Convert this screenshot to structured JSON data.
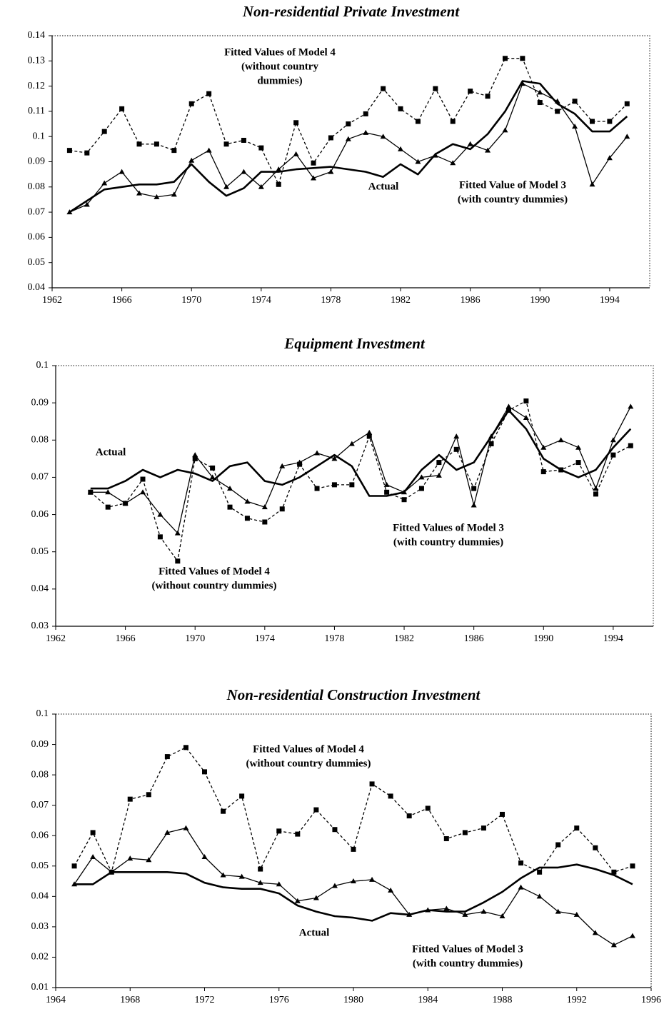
{
  "chart_data": [
    {
      "type": "line",
      "title": "Non-residential Private Investment",
      "x": [
        1963,
        1964,
        1965,
        1966,
        1967,
        1968,
        1969,
        1970,
        1971,
        1972,
        1973,
        1974,
        1975,
        1976,
        1977,
        1978,
        1979,
        1980,
        1981,
        1982,
        1983,
        1984,
        1985,
        1986,
        1987,
        1988,
        1989,
        1990,
        1991,
        1992,
        1993,
        1994,
        1995
      ],
      "xlim": [
        1962,
        1996.3
      ],
      "xticks": [
        1962,
        1966,
        1970,
        1974,
        1978,
        1982,
        1986,
        1990,
        1994
      ],
      "ylim": [
        0.04,
        0.14
      ],
      "yticks": [
        0.04,
        0.05,
        0.06,
        0.07,
        0.08,
        0.09,
        0.1,
        0.11,
        0.12,
        0.13,
        0.14
      ],
      "series": [
        {
          "name": [
            "Fitted Values of Model 4",
            "(without country",
            "dummies)"
          ],
          "color": "#000000",
          "marker": "square",
          "dashed": true,
          "width": 1.3,
          "values": [
            0.0945,
            0.0935,
            0.102,
            0.111,
            0.097,
            0.097,
            0.0945,
            0.113,
            0.117,
            0.097,
            0.0985,
            0.0955,
            0.081,
            0.1055,
            0.0895,
            0.0995,
            0.105,
            0.109,
            0.119,
            0.111,
            0.106,
            0.119,
            0.106,
            0.118,
            0.116,
            0.131,
            0.131,
            0.1135,
            0.11,
            0.114,
            0.106,
            0.106,
            0.113
          ]
        },
        {
          "name": [
            "Actual"
          ],
          "color": "#000000",
          "marker": null,
          "dashed": false,
          "width": 2.6,
          "values": [
            0.07,
            0.0745,
            0.079,
            0.08,
            0.081,
            0.081,
            0.082,
            0.089,
            0.082,
            0.0765,
            0.0795,
            0.086,
            0.086,
            0.087,
            0.0875,
            0.088,
            0.087,
            0.086,
            0.084,
            0.089,
            0.085,
            0.093,
            0.097,
            0.095,
            0.101,
            0.11,
            0.122,
            0.121,
            0.113,
            0.109,
            0.102,
            0.102,
            0.108
          ]
        },
        {
          "name": [
            "Fitted Value of Model 3",
            "(with country dummies)"
          ],
          "color": "#000000",
          "marker": "triangle",
          "dashed": false,
          "width": 1.3,
          "values": [
            0.07,
            0.073,
            0.0815,
            0.086,
            0.0775,
            0.076,
            0.077,
            0.0905,
            0.0945,
            0.08,
            0.086,
            0.08,
            0.087,
            0.093,
            0.0835,
            0.086,
            0.099,
            0.1015,
            0.1,
            0.095,
            0.09,
            0.0925,
            0.0895,
            0.097,
            0.0945,
            0.1025,
            0.121,
            0.1175,
            0.114,
            0.104,
            0.081,
            0.0915,
            0.1
          ]
        }
      ]
    },
    {
      "type": "line",
      "title": "Equipment Investment",
      "x": [
        1964,
        1965,
        1966,
        1967,
        1968,
        1969,
        1970,
        1971,
        1972,
        1973,
        1974,
        1975,
        1976,
        1977,
        1978,
        1979,
        1980,
        1981,
        1982,
        1983,
        1984,
        1985,
        1986,
        1987,
        1988,
        1989,
        1990,
        1991,
        1992,
        1993,
        1994,
        1995
      ],
      "xlim": [
        1962,
        1996.3
      ],
      "xticks": [
        1962,
        1966,
        1970,
        1974,
        1978,
        1982,
        1986,
        1990,
        1994
      ],
      "ylim": [
        0.03,
        0.1
      ],
      "yticks": [
        0.03,
        0.04,
        0.05,
        0.06,
        0.07,
        0.08,
        0.09,
        0.1
      ],
      "series": [
        {
          "name": [
            "Actual"
          ],
          "color": "#000000",
          "marker": null,
          "dashed": false,
          "width": 2.6,
          "values": [
            0.067,
            0.067,
            0.069,
            0.072,
            0.07,
            0.072,
            0.071,
            0.069,
            0.073,
            0.074,
            0.069,
            0.068,
            0.07,
            0.073,
            0.076,
            0.073,
            0.065,
            0.065,
            0.066,
            0.072,
            0.076,
            0.072,
            0.074,
            0.081,
            0.088,
            0.083,
            0.075,
            0.072,
            0.07,
            0.072,
            0.078,
            0.083
          ]
        },
        {
          "name": [
            "Fitted Values of Model 3",
            "(with country dummies)"
          ],
          "color": "#000000",
          "marker": "triangle",
          "dashed": false,
          "width": 1.3,
          "values": [
            0.066,
            0.066,
            0.063,
            0.066,
            0.06,
            0.055,
            0.076,
            0.07,
            0.067,
            0.0635,
            0.062,
            0.073,
            0.074,
            0.0765,
            0.075,
            0.079,
            0.082,
            0.068,
            0.066,
            0.07,
            0.0705,
            0.081,
            0.0625,
            0.081,
            0.089,
            0.086,
            0.078,
            0.08,
            0.078,
            0.067,
            0.08,
            0.089
          ]
        },
        {
          "name": [
            "Fitted Values of Model 4",
            "(without country dummies)"
          ],
          "color": "#000000",
          "marker": "square",
          "dashed": true,
          "width": 1.3,
          "values": [
            0.066,
            0.062,
            0.063,
            0.0695,
            0.054,
            0.0475,
            0.075,
            0.0725,
            0.062,
            0.059,
            0.058,
            0.0615,
            0.0735,
            0.067,
            0.068,
            0.068,
            0.081,
            0.066,
            0.064,
            0.067,
            0.074,
            0.0775,
            0.067,
            0.079,
            0.088,
            0.0905,
            0.0715,
            0.072,
            0.074,
            0.0655,
            0.076,
            0.0785
          ]
        }
      ]
    },
    {
      "type": "line",
      "title": "Non-residential Construction Investment",
      "x": [
        1965,
        1966,
        1967,
        1968,
        1969,
        1970,
        1971,
        1972,
        1973,
        1974,
        1975,
        1976,
        1977,
        1978,
        1979,
        1980,
        1981,
        1982,
        1983,
        1984,
        1985,
        1986,
        1987,
        1988,
        1989,
        1990,
        1991,
        1992,
        1993,
        1994,
        1995
      ],
      "xlim": [
        1964,
        1996
      ],
      "xticks": [
        1964,
        1968,
        1972,
        1976,
        1980,
        1984,
        1988,
        1992,
        1996
      ],
      "ylim": [
        0.01,
        0.1
      ],
      "yticks": [
        0.01,
        0.02,
        0.03,
        0.04,
        0.05,
        0.06,
        0.07,
        0.08,
        0.09,
        0.1
      ],
      "series": [
        {
          "name": [
            "Fitted Values of Model 4",
            "(without country dummies)"
          ],
          "color": "#000000",
          "marker": "square",
          "dashed": true,
          "width": 1.3,
          "values": [
            0.05,
            0.061,
            0.048,
            0.072,
            0.0735,
            0.086,
            0.089,
            0.081,
            0.068,
            0.073,
            0.049,
            0.0615,
            0.0605,
            0.0685,
            0.062,
            0.0555,
            0.077,
            0.073,
            0.0665,
            0.069,
            0.059,
            0.061,
            0.0625,
            0.067,
            0.051,
            0.048,
            0.057,
            0.0625,
            0.056,
            0.048,
            0.05
          ]
        },
        {
          "name": [
            "Actual"
          ],
          "color": "#000000",
          "marker": null,
          "dashed": false,
          "width": 2.6,
          "values": [
            0.044,
            0.044,
            0.048,
            0.048,
            0.048,
            0.048,
            0.0475,
            0.0445,
            0.043,
            0.0425,
            0.0425,
            0.041,
            0.037,
            0.035,
            0.0335,
            0.033,
            0.032,
            0.0345,
            0.034,
            0.0355,
            0.035,
            0.035,
            0.038,
            0.0415,
            0.046,
            0.0495,
            0.0495,
            0.0505,
            0.049,
            0.047,
            0.044
          ]
        },
        {
          "name": [
            "Fitted Values of Model 3",
            "(with country dummies)"
          ],
          "color": "#000000",
          "marker": "triangle",
          "dashed": false,
          "width": 1.3,
          "values": [
            0.044,
            0.053,
            0.048,
            0.0525,
            0.052,
            0.061,
            0.0625,
            0.053,
            0.047,
            0.0465,
            0.0445,
            0.044,
            0.0385,
            0.0395,
            0.0435,
            0.045,
            0.0455,
            0.042,
            0.034,
            0.0355,
            0.036,
            0.034,
            0.035,
            0.0335,
            0.043,
            0.04,
            0.035,
            0.034,
            0.028,
            0.024,
            0.027
          ]
        }
      ]
    }
  ]
}
